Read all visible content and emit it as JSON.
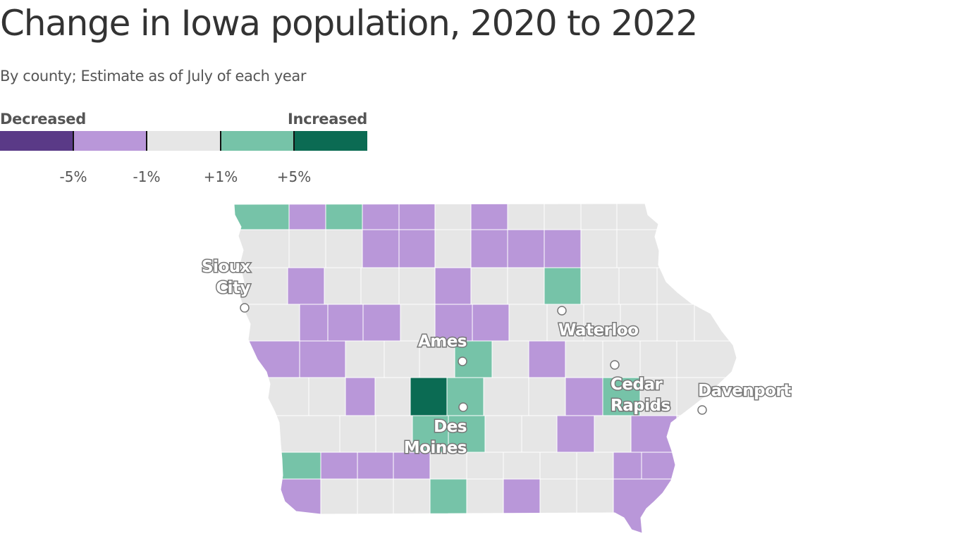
{
  "title": "Change in Iowa population, 2020 to 2022",
  "subtitle": "By county; Estimate as of July of each year",
  "legend": {
    "left_label": "Decreased",
    "right_label": "Increased",
    "bins": [
      {
        "key": "decrease_large",
        "color": "#5a3a87"
      },
      {
        "key": "decrease",
        "color": "#b997d9"
      },
      {
        "key": "flat",
        "color": "#e6e6e6"
      },
      {
        "key": "increase",
        "color": "#76c3a8"
      },
      {
        "key": "increase_large",
        "color": "#0b6b53"
      }
    ],
    "ticks": [
      "-5%",
      "-1%",
      "+1%",
      "+5%"
    ]
  },
  "cities": [
    {
      "name": "Sioux City",
      "lines": [
        "Sioux",
        "City"
      ]
    },
    {
      "name": "Ames",
      "lines": [
        "Ames"
      ]
    },
    {
      "name": "Waterloo",
      "lines": [
        "Waterloo"
      ]
    },
    {
      "name": "Cedar Rapids",
      "lines": [
        "Cedar",
        "Rapids"
      ]
    },
    {
      "name": "Davenport",
      "lines": [
        "Davenport"
      ]
    },
    {
      "name": "Des Moines",
      "lines": [
        "Des",
        "Moines"
      ]
    }
  ]
}
